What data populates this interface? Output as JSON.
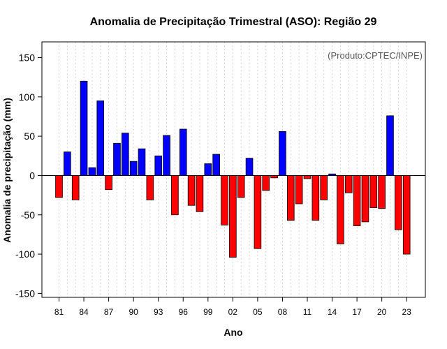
{
  "chart_data": {
    "type": "bar",
    "title": "Anomalia de Precipitação Trimestral (ASO): Região 29",
    "xlabel": "Ano",
    "ylabel": "Anomalia de precipitação (mm)",
    "note": "(Produto:CPTEC/INPE)",
    "ylim": [
      -155,
      170
    ],
    "yticks": [
      -150,
      -100,
      -50,
      0,
      50,
      100,
      150
    ],
    "ytick_labels": [
      "-150",
      "-100",
      "-50",
      "0",
      "50",
      "100",
      "150"
    ],
    "categories": [
      "1981",
      "1982",
      "1983",
      "1984",
      "1985",
      "1986",
      "1987",
      "1988",
      "1989",
      "1990",
      "1991",
      "1992",
      "1993",
      "1994",
      "1995",
      "1996",
      "1997",
      "1998",
      "1999",
      "2000",
      "2001",
      "2002",
      "2003",
      "2004",
      "2005",
      "2006",
      "2007",
      "2008",
      "2009",
      "2010",
      "2011",
      "2012",
      "2013",
      "2014",
      "2015",
      "2016",
      "2017",
      "2018",
      "2019",
      "2020",
      "2021",
      "2022",
      "2023"
    ],
    "values": [
      -28,
      30,
      -31,
      120,
      10,
      95,
      -18,
      41,
      54,
      18,
      34,
      -31,
      25,
      51,
      -50,
      59,
      -38,
      -46,
      15,
      27,
      -63,
      -104,
      -28,
      22,
      -93,
      -19,
      -3,
      56,
      -57,
      -36,
      -4,
      -57,
      -31,
      2,
      -87,
      -22,
      -64,
      -59,
      -41,
      -42,
      76,
      -69,
      -100
    ],
    "xtick_labels": [
      "81",
      "84",
      "87",
      "90",
      "93",
      "96",
      "99",
      "02",
      "05",
      "08",
      "11",
      "14",
      "17",
      "20",
      "23"
    ],
    "xtick_every": 3,
    "colors": {
      "positive": "#0000FF",
      "negative": "#FF0000",
      "bar_edge": "#000000",
      "grid": "#d3d3d3",
      "zero_line": "#000000"
    }
  }
}
